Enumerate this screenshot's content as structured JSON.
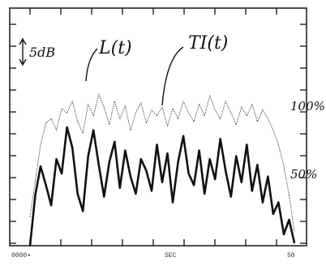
{
  "chart_data": {
    "type": "line",
    "xlabel": "SEC",
    "xtick_labels": [
      {
        "x": 0,
        "label": "0000▪"
      },
      {
        "x": 50,
        "label": "50"
      }
    ],
    "xlim": [
      0,
      50
    ],
    "ylim": [
      0,
      100
    ],
    "scale_bar": {
      "label": "5dB"
    },
    "right_labels": [
      {
        "y": 100,
        "label": "100%"
      },
      {
        "y": 50,
        "label": "50%"
      }
    ],
    "grid": false,
    "legend": "labels pointing to curves",
    "series": [
      {
        "name": "TI(t)",
        "style": "thin-dotted",
        "color": "#555555",
        "x": [
          0,
          1,
          2,
          3,
          4,
          5,
          6,
          7,
          8,
          9,
          10,
          11,
          12,
          13,
          14,
          15,
          16,
          17,
          18,
          19,
          20,
          21,
          22,
          23,
          24,
          25,
          26,
          27,
          28,
          29,
          30,
          31,
          32,
          33,
          34,
          35,
          36,
          37,
          38,
          39,
          40,
          41,
          42,
          43,
          44,
          45,
          46,
          47,
          48,
          49,
          50
        ],
        "y": [
          20,
          45,
          70,
          85,
          88,
          80,
          95,
          92,
          100,
          86,
          78,
          98,
          90,
          105,
          96,
          84,
          100,
          88,
          97,
          80,
          92,
          99,
          85,
          94,
          90,
          96,
          83,
          95,
          88,
          100,
          92,
          86,
          98,
          90,
          104,
          94,
          88,
          100,
          92,
          84,
          96,
          90,
          98,
          86,
          94,
          88,
          80,
          70,
          55,
          35,
          10
        ]
      },
      {
        "name": "L(t)",
        "style": "thick-solid",
        "color": "#111111",
        "x": [
          0,
          1,
          2,
          3,
          4,
          5,
          6,
          7,
          8,
          9,
          10,
          11,
          12,
          13,
          14,
          15,
          16,
          17,
          18,
          19,
          20,
          21,
          22,
          23,
          24,
          25,
          26,
          27,
          28,
          29,
          30,
          31,
          32,
          33,
          34,
          35,
          36,
          37,
          38,
          39,
          40,
          41,
          42,
          43,
          44,
          45,
          46,
          47,
          48,
          49,
          50
        ],
        "y": [
          0,
          35,
          55,
          42,
          28,
          60,
          50,
          82,
          68,
          36,
          24,
          62,
          80,
          56,
          34,
          58,
          72,
          40,
          66,
          48,
          36,
          60,
          52,
          38,
          70,
          44,
          64,
          30,
          58,
          76,
          50,
          42,
          66,
          36,
          60,
          46,
          74,
          52,
          34,
          62,
          44,
          70,
          38,
          56,
          30,
          48,
          22,
          30,
          8,
          18,
          2
        ]
      }
    ]
  }
}
